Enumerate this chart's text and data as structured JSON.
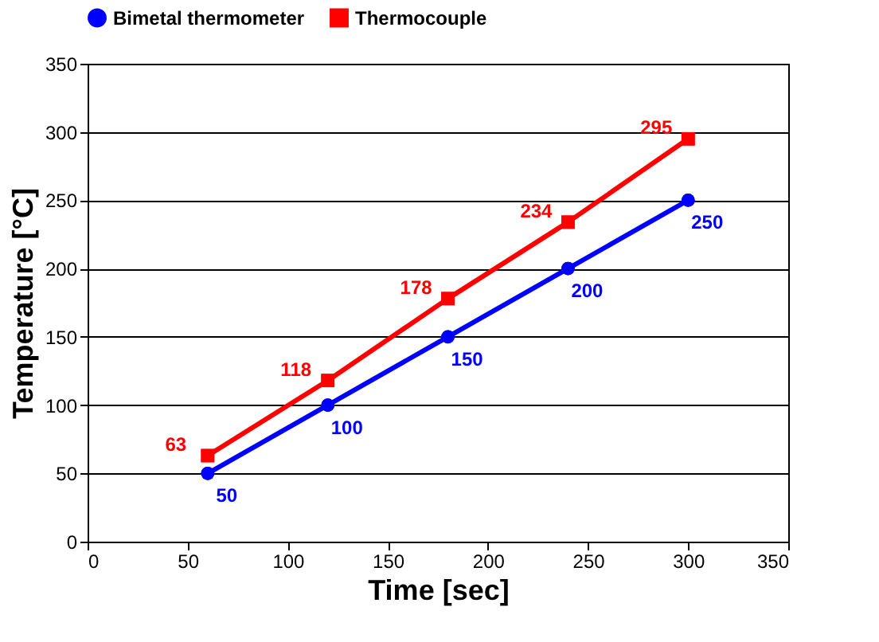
{
  "chart_data": {
    "type": "line",
    "xlabel": "Time   [sec]",
    "ylabel": "Temperature   [°C]",
    "x": [
      60,
      120,
      180,
      240,
      300
    ],
    "series": [
      {
        "name": "Bimetal thermometer",
        "color": "#0000ff",
        "marker": "circle",
        "values": [
          50,
          100,
          150,
          200,
          250
        ]
      },
      {
        "name": "Thermocouple",
        "color": "#ff0000",
        "marker": "square",
        "values": [
          63,
          118,
          178,
          234,
          295
        ]
      }
    ],
    "xlim": [
      0,
      350
    ],
    "xticks": [
      0,
      50,
      100,
      150,
      200,
      250,
      300,
      350
    ],
    "ylim": [
      0,
      350
    ],
    "yticks": [
      0,
      50,
      100,
      150,
      200,
      250,
      300,
      350
    ],
    "grid": "y",
    "legend": "top",
    "data_labels": true,
    "line_style": "solid"
  }
}
